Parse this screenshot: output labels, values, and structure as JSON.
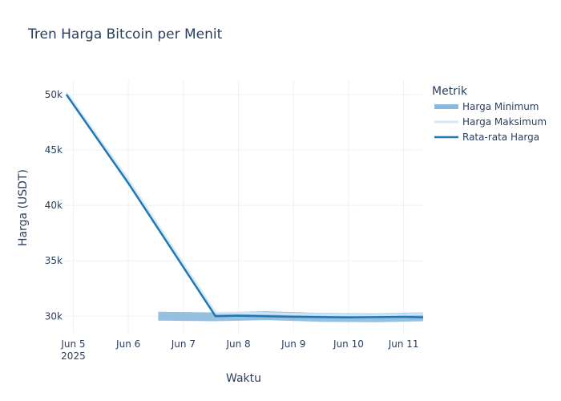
{
  "chart_data": {
    "type": "line",
    "title": "Tren Harga Bitcoin per Menit",
    "xlabel": "Waktu",
    "ylabel": "Harga (USDT)",
    "xlim": [
      "2025-06-04T20:00",
      "2025-06-11T08:30"
    ],
    "ylim": [
      28500,
      51300
    ],
    "x_ticks": [
      {
        "date": "2025-06-05",
        "label": "Jun 5",
        "sublabel": "2025"
      },
      {
        "date": "2025-06-06",
        "label": "Jun 6"
      },
      {
        "date": "2025-06-07",
        "label": "Jun 7"
      },
      {
        "date": "2025-06-08",
        "label": "Jun 8"
      },
      {
        "date": "2025-06-09",
        "label": "Jun 9"
      },
      {
        "date": "2025-06-10",
        "label": "Jun 10"
      },
      {
        "date": "2025-06-11",
        "label": "Jun 11"
      }
    ],
    "y_ticks": [
      {
        "value": 30000,
        "label": "30k"
      },
      {
        "value": 35000,
        "label": "35k"
      },
      {
        "value": 40000,
        "label": "40k"
      },
      {
        "value": 45000,
        "label": "45k"
      },
      {
        "value": 50000,
        "label": "50k"
      }
    ],
    "grid": true,
    "legend": {
      "title": "Metrik",
      "position": "top-right"
    },
    "series": [
      {
        "name": "Harga Minimum",
        "color": "#8ab9dd",
        "x": [
          "2025-06-06T13:00",
          "2025-06-07T14:00",
          "2025-06-08T12:00",
          "2025-06-09T12:00",
          "2025-06-10T12:00",
          "2025-06-11T08:30"
        ],
        "y": [
          30000,
          29950,
          30050,
          29900,
          29850,
          29950
        ]
      },
      {
        "name": "Harga Maksimum",
        "color": "#d6e7f5",
        "x": [
          "2025-06-04T21:00",
          "2025-06-06T00:00",
          "2025-06-07T14:00",
          "2025-06-08T12:00",
          "2025-06-09T12:00",
          "2025-06-10T12:00",
          "2025-06-11T08:30"
        ],
        "y": [
          50200,
          42300,
          30300,
          30250,
          30150,
          30100,
          30200
        ]
      },
      {
        "name": "Rata-rata Harga",
        "color": "#1f77b4",
        "x": [
          "2025-06-04T21:00",
          "2025-06-06T00:00",
          "2025-06-07T14:00",
          "2025-06-08T00:00",
          "2025-06-09T00:00",
          "2025-06-10T00:00",
          "2025-06-11T00:00",
          "2025-06-11T08:30"
        ],
        "y": [
          50000,
          42000,
          30000,
          30050,
          29950,
          29900,
          29950,
          29900
        ]
      }
    ]
  }
}
